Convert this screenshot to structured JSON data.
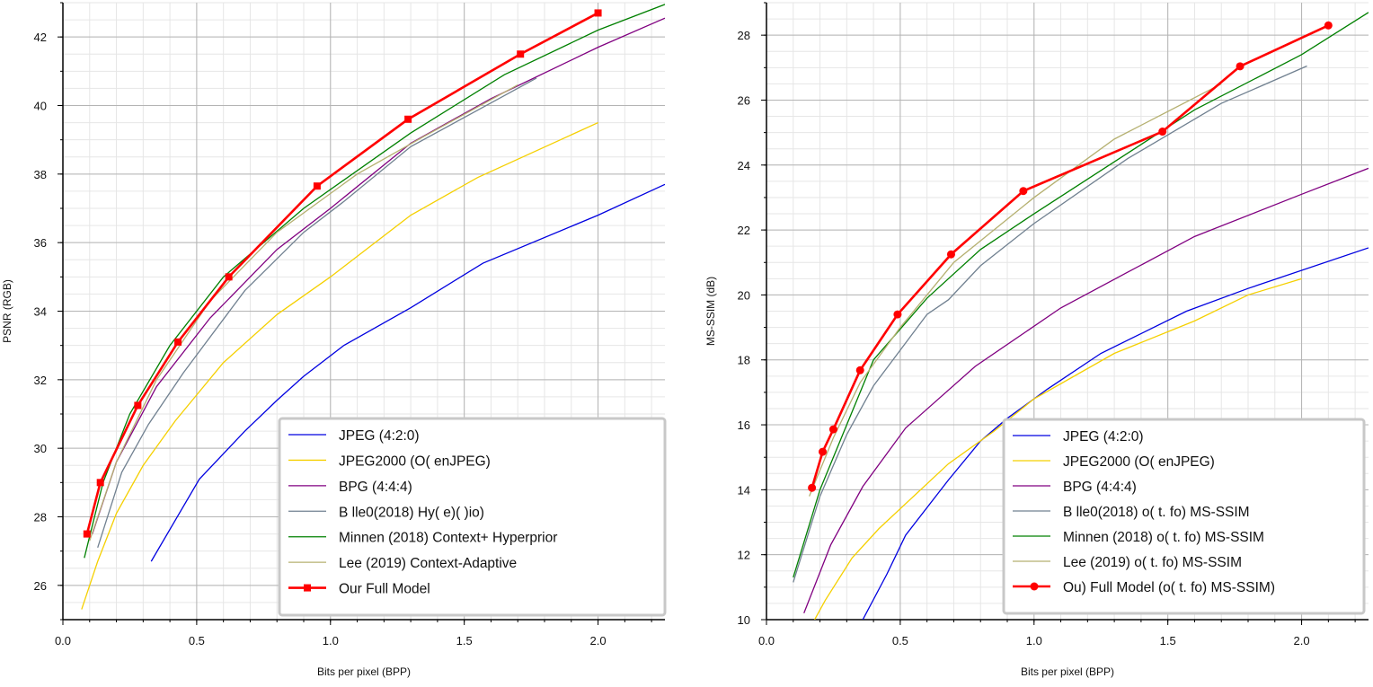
{
  "chart_data": [
    {
      "type": "line",
      "xlabel": "Bits per pixel (BPP)",
      "ylabel": "PSNR (RGB)",
      "xlim": [
        0,
        2.25
      ],
      "ylim": [
        25,
        43
      ],
      "xticks": [
        "0.0",
        "0.5",
        "1.0",
        "1.5",
        "2.0"
      ],
      "yticks": [
        "26",
        "28",
        "30",
        "32",
        "34",
        "36",
        "38",
        "40",
        "42"
      ],
      "grid": true,
      "legend_position": "bottom-right",
      "series": [
        {
          "name": "JPEG (4:2:0)",
          "color": "#0000e0",
          "marker": "none",
          "x": [
            0.33,
            0.42,
            0.51,
            0.68,
            0.8,
            0.9,
            1.05,
            1.3,
            1.57,
            2.0,
            2.25
          ],
          "y": [
            26.7,
            27.9,
            29.1,
            30.5,
            31.4,
            32.1,
            33.0,
            34.1,
            35.4,
            36.8,
            37.7
          ]
        },
        {
          "name": "JPEG2000 (O( enJPEG)",
          "color": "#f5d000",
          "marker": "none",
          "x": [
            0.07,
            0.13,
            0.2,
            0.3,
            0.42,
            0.6,
            0.8,
            1.0,
            1.3,
            1.55,
            2.0
          ],
          "y": [
            25.3,
            26.7,
            28.1,
            29.5,
            30.8,
            32.5,
            33.9,
            35.0,
            36.8,
            37.9,
            39.5
          ]
        },
        {
          "name": "BPG (4:4:4)",
          "color": "#800080",
          "marker": "none",
          "x": [
            0.11,
            0.2,
            0.35,
            0.55,
            0.8,
            1.0,
            1.3,
            1.6,
            2.0,
            2.25
          ],
          "y": [
            27.5,
            29.6,
            31.8,
            33.8,
            35.8,
            37.0,
            38.9,
            40.2,
            41.7,
            42.55
          ]
        },
        {
          "name": "B  lle0(2018) Hy( e)( )io)",
          "color": "#708090",
          "marker": "none",
          "x": [
            0.13,
            0.22,
            0.32,
            0.45,
            0.68,
            0.9,
            1.05,
            1.3,
            1.77
          ],
          "y": [
            27.1,
            29.3,
            30.7,
            32.2,
            34.6,
            36.3,
            37.2,
            38.8,
            40.8
          ]
        },
        {
          "name": "Minnen (2018) Context+ Hyperprior",
          "color": "#008000",
          "marker": "none",
          "x": [
            0.08,
            0.15,
            0.25,
            0.4,
            0.6,
            0.9,
            1.3,
            1.65,
            2.0,
            2.25
          ],
          "y": [
            26.8,
            29.0,
            31.0,
            33.0,
            35.0,
            37.0,
            39.2,
            40.9,
            42.2,
            42.95
          ]
        },
        {
          "name": "Lee (2019) Context-Adaptive",
          "color": "#b5b070",
          "marker": "none",
          "x": [
            0.1,
            0.2,
            0.35,
            0.55,
            0.8,
            1.1,
            1.35,
            1.7
          ],
          "y": [
            27.3,
            29.6,
            32.0,
            34.3,
            36.3,
            38.0,
            39.1,
            40.6
          ]
        },
        {
          "name": "Our Full Model",
          "color": "#ff0000",
          "marker": "square",
          "x": [
            0.09,
            0.14,
            0.28,
            0.43,
            0.62,
            0.95,
            1.29,
            1.71,
            2.0
          ],
          "y": [
            27.5,
            29.0,
            31.25,
            33.1,
            35.0,
            37.65,
            39.6,
            41.5,
            42.7
          ]
        }
      ]
    },
    {
      "type": "line",
      "xlabel": "Bits per pixel (BPP)",
      "ylabel": "MS-SSIM (dB)",
      "xlim": [
        0,
        2.25
      ],
      "ylim": [
        10,
        29
      ],
      "xticks": [
        "0.0",
        "0.5",
        "1.0",
        "1.5",
        "2.0"
      ],
      "yticks": [
        "10",
        "12",
        "14",
        "16",
        "18",
        "20",
        "22",
        "24",
        "26",
        "28"
      ],
      "grid": true,
      "legend_position": "bottom-right",
      "series": [
        {
          "name": "JPEG (4:2:0)",
          "color": "#0000e0",
          "marker": "none",
          "x": [
            0.36,
            0.45,
            0.52,
            0.68,
            0.8,
            0.9,
            1.05,
            1.25,
            1.57,
            1.8,
            2.25
          ],
          "y": [
            10.0,
            11.4,
            12.6,
            14.3,
            15.5,
            16.2,
            17.1,
            18.2,
            19.5,
            20.2,
            21.45
          ]
        },
        {
          "name": "JPEG2000 (O( enJPEG)",
          "color": "#f5d000",
          "marker": "none",
          "x": [
            0.18,
            0.22,
            0.32,
            0.42,
            0.55,
            0.68,
            0.85,
            1.0,
            1.3,
            1.6,
            1.8,
            2.0
          ],
          "y": [
            10.0,
            10.6,
            11.9,
            12.8,
            13.8,
            14.8,
            15.8,
            16.8,
            18.2,
            19.2,
            20.0,
            20.5
          ]
        },
        {
          "name": "BPG (4:4:4)",
          "color": "#800080",
          "marker": "none",
          "x": [
            0.14,
            0.24,
            0.36,
            0.52,
            0.78,
            1.1,
            1.35,
            1.6,
            2.0,
            2.25
          ],
          "y": [
            10.2,
            12.3,
            14.1,
            15.9,
            17.8,
            19.6,
            20.7,
            21.8,
            23.1,
            23.9
          ]
        },
        {
          "name": "B  lle0(2018) o( t. fo) MS-SSIM",
          "color": "#708090",
          "marker": "none",
          "x": [
            0.1,
            0.2,
            0.3,
            0.4,
            0.6,
            0.68,
            0.8,
            1.0,
            1.35,
            1.7,
            2.02
          ],
          "y": [
            11.15,
            13.8,
            15.7,
            17.2,
            19.4,
            19.85,
            20.9,
            22.2,
            24.2,
            25.9,
            27.05
          ]
        },
        {
          "name": "Minnen (2018) o( t. fo) MS-SSIM",
          "color": "#008000",
          "marker": "none",
          "x": [
            0.1,
            0.2,
            0.3,
            0.4,
            0.6,
            0.8,
            1.0,
            1.3,
            1.6,
            2.0,
            2.25
          ],
          "y": [
            11.3,
            14.0,
            16.0,
            18.0,
            19.9,
            21.4,
            22.5,
            24.1,
            25.7,
            27.4,
            28.7
          ]
        },
        {
          "name": "Lee (2019) o( t. fo) MS-SSIM",
          "color": "#b5b070",
          "marker": "none",
          "x": [
            0.16,
            0.25,
            0.35,
            0.5,
            0.7,
            1.0,
            1.3,
            1.7
          ],
          "y": [
            13.8,
            15.6,
            17.3,
            19.0,
            21.0,
            23.0,
            24.8,
            26.5
          ]
        },
        {
          "name": "Ou) Full Model (o( t. fo) MS-SSIM)",
          "color": "#ff0000",
          "marker": "circle",
          "x": [
            0.17,
            0.21,
            0.25,
            0.35,
            0.49,
            0.69,
            0.96,
            1.48,
            1.77,
            2.1
          ],
          "y": [
            14.06,
            15.17,
            15.86,
            17.68,
            19.4,
            21.25,
            23.2,
            25.03,
            27.04,
            28.3
          ]
        }
      ]
    }
  ]
}
